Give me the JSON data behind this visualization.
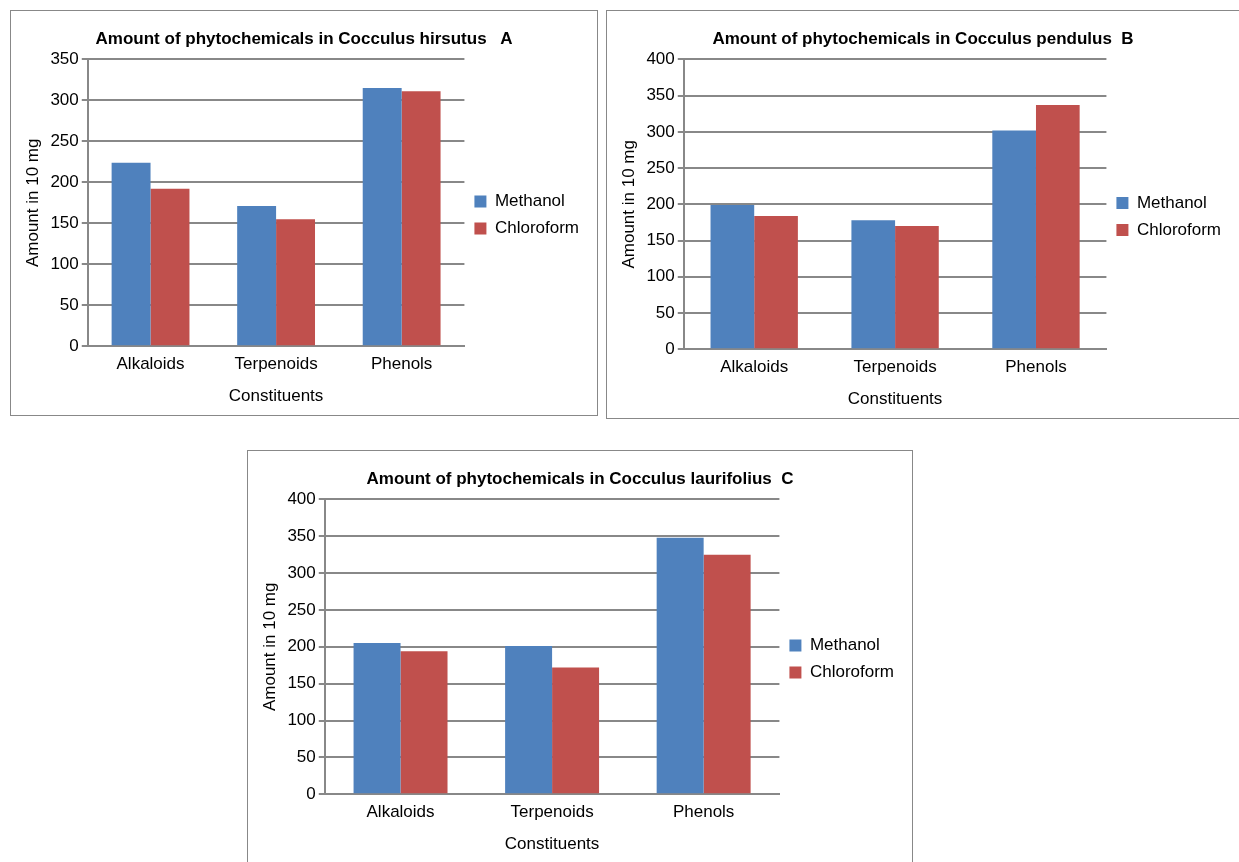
{
  "chart_data": [
    {
      "type": "bar",
      "title": "Amount of phytochemicals in Cocculus hirsutus   A",
      "xlabel": "Constituents",
      "ylabel": "Amount in 10 mg",
      "categories": [
        "Alkaloids",
        "Terpenoids",
        "Phenols"
      ],
      "series": [
        {
          "name": "Methanol",
          "color": "#4f81bd",
          "values": [
            224,
            171,
            315
          ]
        },
        {
          "name": "Chloroform",
          "color": "#c0504d",
          "values": [
            192,
            155,
            311
          ]
        }
      ],
      "ylim": [
        0,
        350
      ],
      "yticks": [
        0,
        50,
        100,
        150,
        200,
        250,
        300,
        350
      ],
      "grid": "y",
      "legend": "right"
    },
    {
      "type": "bar",
      "title": "Amount of phytochemicals in Cocculus pendulus  B",
      "xlabel": "Constituents",
      "ylabel": "Amount in 10 mg",
      "categories": [
        "Alkaloids",
        "Terpenoids",
        "Phenols"
      ],
      "series": [
        {
          "name": "Methanol",
          "color": "#4f81bd",
          "values": [
            199,
            178,
            302
          ]
        },
        {
          "name": "Chloroform",
          "color": "#c0504d",
          "values": [
            184,
            170,
            337
          ]
        }
      ],
      "ylim": [
        0,
        400
      ],
      "yticks": [
        0,
        50,
        100,
        150,
        200,
        250,
        300,
        350,
        400
      ],
      "grid": "y",
      "legend": "right"
    },
    {
      "type": "bar",
      "title": "Amount of phytochemicals in Cocculus laurifolius  C",
      "xlabel": "Constituents",
      "ylabel": "Amount in 10 mg",
      "categories": [
        "Alkaloids",
        "Terpenoids",
        "Phenols"
      ],
      "series": [
        {
          "name": "Methanol",
          "color": "#4f81bd",
          "values": [
            205,
            201,
            348
          ]
        },
        {
          "name": "Chloroform",
          "color": "#c0504d",
          "values": [
            194,
            172,
            325
          ]
        }
      ],
      "ylim": [
        0,
        400
      ],
      "yticks": [
        0,
        50,
        100,
        150,
        200,
        250,
        300,
        350,
        400
      ],
      "grid": "y",
      "legend": "right"
    }
  ]
}
